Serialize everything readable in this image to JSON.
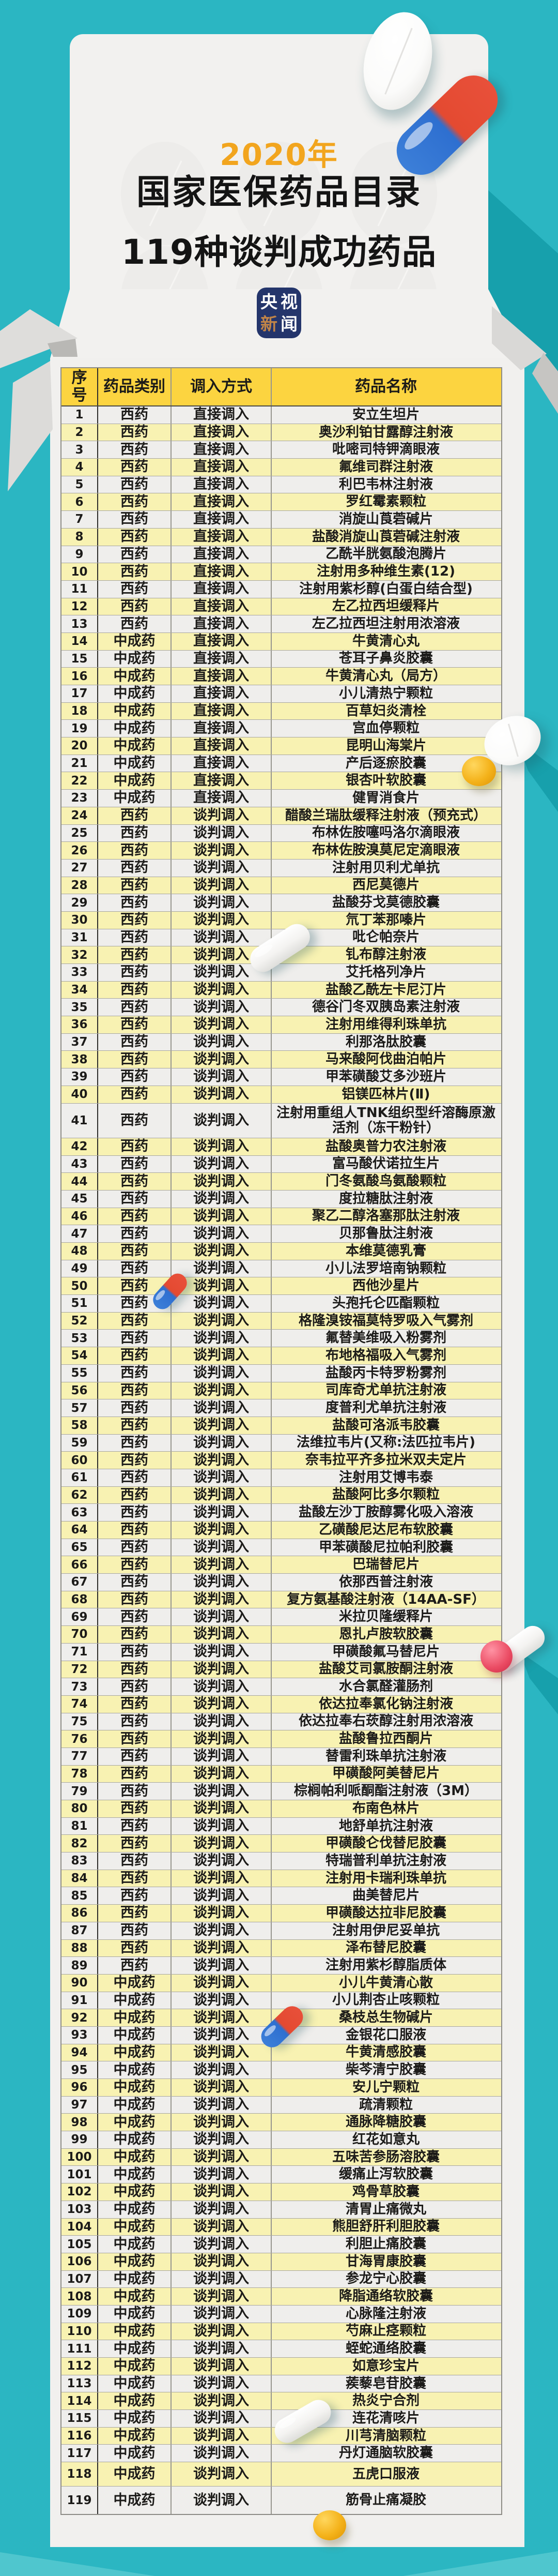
{
  "page": {
    "title_year": "2020年",
    "title_line1": "国家医保药品目录",
    "title_line2": "119种谈判成功药品",
    "logo": {
      "chars": [
        "央",
        "视",
        "新",
        "闻"
      ]
    },
    "colors": {
      "teal_background": "#2bb6c2",
      "teal_shadow": "#17a0ac",
      "card": "#f2f1ef",
      "header_yellow": "#fcd440",
      "row_yellow": "#f8f2b2",
      "row_white": "#efeeec",
      "accent_orange": "#f2a51e",
      "logo_blue": "#24356b",
      "logo_gold": "#c08448"
    },
    "decorations": [
      {
        "name": "tablet-pill-top",
        "type": "round-tablet"
      },
      {
        "name": "red-blue-capsule-top",
        "type": "capsule"
      },
      {
        "name": "tablet-pill-right",
        "type": "round-tablet"
      },
      {
        "name": "gold-softgel-right",
        "type": "softgel"
      },
      {
        "name": "white-capsule-mid",
        "type": "capsule"
      },
      {
        "name": "red-blue-capsule-small-1",
        "type": "capsule"
      },
      {
        "name": "white-capsule-right",
        "type": "capsule"
      },
      {
        "name": "pink-pill",
        "type": "round-tablet"
      },
      {
        "name": "red-blue-capsule-small-2",
        "type": "capsule"
      },
      {
        "name": "white-capsule-bottom",
        "type": "capsule"
      },
      {
        "name": "gold-softgel-bottom",
        "type": "softgel"
      }
    ]
  },
  "table": {
    "headers": [
      "序号",
      "药品类别",
      "调入方式",
      "药品名称"
    ],
    "rows": [
      [
        "1",
        "西药",
        "直接调入",
        "安立生坦片"
      ],
      [
        "2",
        "西药",
        "直接调入",
        "奥沙利铂甘露醇注射液"
      ],
      [
        "3",
        "西药",
        "直接调入",
        "吡嘧司特钾滴眼液"
      ],
      [
        "4",
        "西药",
        "直接调入",
        "氟维司群注射液"
      ],
      [
        "5",
        "西药",
        "直接调入",
        "利巴韦林注射液"
      ],
      [
        "6",
        "西药",
        "直接调入",
        "罗红霉素颗粒"
      ],
      [
        "7",
        "西药",
        "直接调入",
        "消旋山莨菪碱片"
      ],
      [
        "8",
        "西药",
        "直接调入",
        "盐酸消旋山莨菪碱注射液"
      ],
      [
        "9",
        "西药",
        "直接调入",
        "乙酰半胱氨酸泡腾片"
      ],
      [
        "10",
        "西药",
        "直接调入",
        "注射用多种维生素(12)"
      ],
      [
        "11",
        "西药",
        "直接调入",
        "注射用紫杉醇(白蛋白结合型)"
      ],
      [
        "12",
        "西药",
        "直接调入",
        "左乙拉西坦缓释片"
      ],
      [
        "13",
        "西药",
        "直接调入",
        "左乙拉西坦注射用浓溶液"
      ],
      [
        "14",
        "中成药",
        "直接调入",
        "牛黄清心丸"
      ],
      [
        "15",
        "中成药",
        "直接调入",
        "苍耳子鼻炎胶囊"
      ],
      [
        "16",
        "中成药",
        "直接调入",
        "牛黄清心丸（局方）"
      ],
      [
        "17",
        "中成药",
        "直接调入",
        "小儿清热宁颗粒"
      ],
      [
        "18",
        "中成药",
        "直接调入",
        "百草妇炎清栓"
      ],
      [
        "19",
        "中成药",
        "直接调入",
        "宫血停颗粒"
      ],
      [
        "20",
        "中成药",
        "直接调入",
        "昆明山海棠片"
      ],
      [
        "21",
        "中成药",
        "直接调入",
        "产后逐瘀胶囊"
      ],
      [
        "22",
        "中成药",
        "直接调入",
        "银杏叶软胶囊"
      ],
      [
        "23",
        "中成药",
        "直接调入",
        "健胃消食片"
      ],
      [
        "24",
        "西药",
        "谈判调入",
        "醋酸兰瑞肽缓释注射液（预充式）"
      ],
      [
        "25",
        "西药",
        "谈判调入",
        "布林佐胺噻吗洛尔滴眼液"
      ],
      [
        "26",
        "西药",
        "谈判调入",
        "布林佐胺溴莫尼定滴眼液"
      ],
      [
        "27",
        "西药",
        "谈判调入",
        "注射用贝利尤单抗"
      ],
      [
        "28",
        "西药",
        "谈判调入",
        "西尼莫德片"
      ],
      [
        "29",
        "西药",
        "谈判调入",
        "盐酸芬戈莫德胶囊"
      ],
      [
        "30",
        "西药",
        "谈判调入",
        "氘丁苯那嗪片"
      ],
      [
        "31",
        "西药",
        "谈判调入",
        "吡仑帕奈片"
      ],
      [
        "32",
        "西药",
        "谈判调入",
        "钆布醇注射液"
      ],
      [
        "33",
        "西药",
        "谈判调入",
        "艾托格列净片"
      ],
      [
        "34",
        "西药",
        "谈判调入",
        "盐酸乙酰左卡尼汀片"
      ],
      [
        "35",
        "西药",
        "谈判调入",
        "德谷门冬双胰岛素注射液"
      ],
      [
        "36",
        "西药",
        "谈判调入",
        "注射用维得利珠单抗"
      ],
      [
        "37",
        "西药",
        "谈判调入",
        "利那洛肽胶囊"
      ],
      [
        "38",
        "西药",
        "谈判调入",
        "马来酸阿伐曲泊帕片"
      ],
      [
        "39",
        "西药",
        "谈判调入",
        "甲苯磺酸艾多沙班片"
      ],
      [
        "40",
        "西药",
        "谈判调入",
        "铝镁匹林片(Ⅱ)"
      ],
      [
        "41",
        "西药",
        "谈判调入",
        "注射用重组人TNK组织型纤溶酶原激活剂（冻干粉针）"
      ],
      [
        "42",
        "西药",
        "谈判调入",
        "盐酸奥普力农注射液"
      ],
      [
        "43",
        "西药",
        "谈判调入",
        "富马酸伏诺拉生片"
      ],
      [
        "44",
        "西药",
        "谈判调入",
        "门冬氨酸鸟氨酸颗粒"
      ],
      [
        "45",
        "西药",
        "谈判调入",
        "度拉糖肽注射液"
      ],
      [
        "46",
        "西药",
        "谈判调入",
        "聚乙二醇洛塞那肽注射液"
      ],
      [
        "47",
        "西药",
        "谈判调入",
        "贝那鲁肽注射液"
      ],
      [
        "48",
        "西药",
        "谈判调入",
        "本维莫德乳膏"
      ],
      [
        "49",
        "西药",
        "谈判调入",
        "小儿法罗培南钠颗粒"
      ],
      [
        "50",
        "西药",
        "谈判调入",
        "西他沙星片"
      ],
      [
        "51",
        "西药",
        "谈判调入",
        "头孢托仑匹酯颗粒"
      ],
      [
        "52",
        "西药",
        "谈判调入",
        "格隆溴铵福莫特罗吸入气雾剂"
      ],
      [
        "53",
        "西药",
        "谈判调入",
        "氟替美维吸入粉雾剂"
      ],
      [
        "54",
        "西药",
        "谈判调入",
        "布地格福吸入气雾剂"
      ],
      [
        "55",
        "西药",
        "谈判调入",
        "盐酸丙卡特罗粉雾剂"
      ],
      [
        "56",
        "西药",
        "谈判调入",
        "司库奇尤单抗注射液"
      ],
      [
        "57",
        "西药",
        "谈判调入",
        "度普利尤单抗注射液"
      ],
      [
        "58",
        "西药",
        "谈判调入",
        "盐酸可洛派韦胶囊"
      ],
      [
        "59",
        "西药",
        "谈判调入",
        "法维拉韦片(又称:法匹拉韦片)"
      ],
      [
        "60",
        "西药",
        "谈判调入",
        "奈韦拉平齐多拉米双夫定片"
      ],
      [
        "61",
        "西药",
        "谈判调入",
        "注射用艾博韦泰"
      ],
      [
        "62",
        "西药",
        "谈判调入",
        "盐酸阿比多尔颗粒"
      ],
      [
        "63",
        "西药",
        "谈判调入",
        "盐酸左沙丁胺醇雾化吸入溶液"
      ],
      [
        "64",
        "西药",
        "谈判调入",
        "乙磺酸尼达尼布软胶囊"
      ],
      [
        "65",
        "西药",
        "谈判调入",
        "甲苯磺酸尼拉帕利胶囊"
      ],
      [
        "66",
        "西药",
        "谈判调入",
        "巴瑞替尼片"
      ],
      [
        "67",
        "西药",
        "谈判调入",
        "依那西普注射液"
      ],
      [
        "68",
        "西药",
        "谈判调入",
        "复方氨基酸注射液（14AA-SF）"
      ],
      [
        "69",
        "西药",
        "谈判调入",
        "米拉贝隆缓释片"
      ],
      [
        "70",
        "西药",
        "谈判调入",
        "恩扎卢胺软胶囊"
      ],
      [
        "71",
        "西药",
        "谈判调入",
        "甲磺酸氟马替尼片"
      ],
      [
        "72",
        "西药",
        "谈判调入",
        "盐酸艾司氯胺酮注射液"
      ],
      [
        "73",
        "西药",
        "谈判调入",
        "水合氯醛灌肠剂"
      ],
      [
        "74",
        "西药",
        "谈判调入",
        "依达拉奉氯化钠注射液"
      ],
      [
        "75",
        "西药",
        "谈判调入",
        "依达拉奉右莰醇注射用浓溶液"
      ],
      [
        "76",
        "西药",
        "谈判调入",
        "盐酸鲁拉西酮片"
      ],
      [
        "77",
        "西药",
        "谈判调入",
        "替雷利珠单抗注射液"
      ],
      [
        "78",
        "西药",
        "谈判调入",
        "甲磺酸阿美替尼片"
      ],
      [
        "79",
        "西药",
        "谈判调入",
        "棕榈帕利哌酮酯注射液（3M）"
      ],
      [
        "80",
        "西药",
        "谈判调入",
        "布南色林片"
      ],
      [
        "81",
        "西药",
        "谈判调入",
        "地舒单抗注射液"
      ],
      [
        "82",
        "西药",
        "谈判调入",
        "甲磺酸仑伐替尼胶囊"
      ],
      [
        "83",
        "西药",
        "谈判调入",
        "特瑞普利单抗注射液"
      ],
      [
        "84",
        "西药",
        "谈判调入",
        "注射用卡瑞利珠单抗"
      ],
      [
        "85",
        "西药",
        "谈判调入",
        "曲美替尼片"
      ],
      [
        "86",
        "西药",
        "谈判调入",
        "甲磺酸达拉非尼胶囊"
      ],
      [
        "87",
        "西药",
        "谈判调入",
        "注射用伊尼妥单抗"
      ],
      [
        "88",
        "西药",
        "谈判调入",
        "泽布替尼胶囊"
      ],
      [
        "89",
        "西药",
        "谈判调入",
        "注射用紫杉醇脂质体"
      ],
      [
        "90",
        "中成药",
        "谈判调入",
        "小儿牛黄清心散"
      ],
      [
        "91",
        "中成药",
        "谈判调入",
        "小儿荆杏止咳颗粒"
      ],
      [
        "92",
        "中成药",
        "谈判调入",
        "桑枝总生物碱片"
      ],
      [
        "93",
        "中成药",
        "谈判调入",
        "金银花口服液"
      ],
      [
        "94",
        "中成药",
        "谈判调入",
        "牛黄清感胶囊"
      ],
      [
        "95",
        "中成药",
        "谈判调入",
        "柴芩清宁胶囊"
      ],
      [
        "96",
        "中成药",
        "谈判调入",
        "安儿宁颗粒"
      ],
      [
        "97",
        "中成药",
        "谈判调入",
        "疏清颗粒"
      ],
      [
        "98",
        "中成药",
        "谈判调入",
        "通脉降糖胶囊"
      ],
      [
        "99",
        "中成药",
        "谈判调入",
        "红花如意丸"
      ],
      [
        "100",
        "中成药",
        "谈判调入",
        "五味苦参肠溶胶囊"
      ],
      [
        "101",
        "中成药",
        "谈判调入",
        "缓痛止泻软胶囊"
      ],
      [
        "102",
        "中成药",
        "谈判调入",
        "鸡骨草胶囊"
      ],
      [
        "103",
        "中成药",
        "谈判调入",
        "清胃止痛微丸"
      ],
      [
        "104",
        "中成药",
        "谈判调入",
        "熊胆舒肝利胆胶囊"
      ],
      [
        "105",
        "中成药",
        "谈判调入",
        "利胆止痛胶囊"
      ],
      [
        "106",
        "中成药",
        "谈判调入",
        "甘海胃康胶囊"
      ],
      [
        "107",
        "中成药",
        "谈判调入",
        "参龙宁心胶囊"
      ],
      [
        "108",
        "中成药",
        "谈判调入",
        "降脂通络软胶囊"
      ],
      [
        "109",
        "中成药",
        "谈判调入",
        "心脉隆注射液"
      ],
      [
        "110",
        "中成药",
        "谈判调入",
        "芍麻止痉颗粒"
      ],
      [
        "111",
        "中成药",
        "谈判调入",
        "蛭蛇通络胶囊"
      ],
      [
        "112",
        "中成药",
        "谈判调入",
        "如意珍宝片"
      ],
      [
        "113",
        "中成药",
        "谈判调入",
        "蒺藜皂苷胶囊"
      ],
      [
        "114",
        "中成药",
        "谈判调入",
        "热炎宁合剂"
      ],
      [
        "115",
        "中成药",
        "谈判调入",
        "连花清咳片"
      ],
      [
        "116",
        "中成药",
        "谈判调入",
        "川芎清脑颗粒"
      ],
      [
        "117",
        "中成药",
        "谈判调入",
        "丹灯通脑软胶囊"
      ],
      [
        "118",
        "中成药",
        "谈判调入",
        "五虎口服液"
      ],
      [
        "119",
        "中成药",
        "谈判调入",
        "筋骨止痛凝胶"
      ]
    ]
  }
}
